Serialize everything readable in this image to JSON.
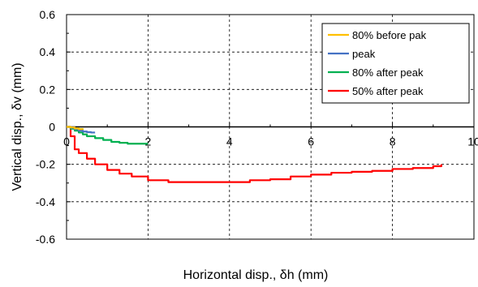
{
  "chart_data": {
    "type": "line",
    "xlabel": "Horizontal disp., δh (mm)",
    "ylabel": "Vertical disp., δv (mm)",
    "xlim": [
      0,
      10
    ],
    "ylim": [
      -0.6,
      0.6
    ],
    "x_ticks": [
      0,
      2,
      4,
      6,
      8,
      10
    ],
    "x_tick_labels": [
      "0",
      "2",
      "4",
      "6",
      "8",
      "10"
    ],
    "y_ticks": [
      -0.6,
      -0.4,
      -0.2,
      0,
      0.2,
      0.4,
      0.6
    ],
    "y_tick_labels": [
      "-0.6",
      "-0.4",
      "-0.2",
      "0",
      "0.2",
      "0.4",
      "0.6"
    ],
    "grid": true,
    "legend_position": "top-right",
    "series": [
      {
        "name": "80% before pak",
        "color": "#ffc000",
        "x": [
          0,
          0.1,
          0.2,
          0.3,
          0.4
        ],
        "y": [
          0,
          -0.003,
          -0.008,
          -0.012,
          -0.015
        ]
      },
      {
        "name": "peak",
        "color": "#4472c4",
        "x": [
          0,
          0.1,
          0.2,
          0.3,
          0.4,
          0.5,
          0.6,
          0.7
        ],
        "y": [
          0,
          -0.005,
          -0.012,
          -0.02,
          -0.025,
          -0.028,
          -0.03,
          -0.03
        ]
      },
      {
        "name": "80% after peak",
        "color": "#00b050",
        "x": [
          0,
          0.1,
          0.2,
          0.3,
          0.4,
          0.5,
          0.7,
          0.9,
          1.1,
          1.3,
          1.5,
          1.7,
          1.9,
          2.0
        ],
        "y": [
          0,
          -0.01,
          -0.02,
          -0.03,
          -0.04,
          -0.05,
          -0.06,
          -0.07,
          -0.08,
          -0.085,
          -0.09,
          -0.09,
          -0.09,
          -0.09
        ]
      },
      {
        "name": "50% after peak",
        "color": "#ff0000",
        "x": [
          0,
          0.1,
          0.2,
          0.3,
          0.5,
          0.7,
          1.0,
          1.3,
          1.6,
          2.0,
          2.5,
          3.0,
          3.5,
          4.0,
          4.5,
          5.0,
          5.5,
          6.0,
          6.5,
          7.0,
          7.5,
          8.0,
          8.5,
          9.0,
          9.2
        ],
        "y": [
          0,
          -0.05,
          -0.12,
          -0.14,
          -0.17,
          -0.2,
          -0.23,
          -0.25,
          -0.265,
          -0.285,
          -0.295,
          -0.295,
          -0.295,
          -0.295,
          -0.285,
          -0.28,
          -0.265,
          -0.255,
          -0.245,
          -0.24,
          -0.235,
          -0.225,
          -0.22,
          -0.21,
          -0.2
        ]
      }
    ]
  }
}
